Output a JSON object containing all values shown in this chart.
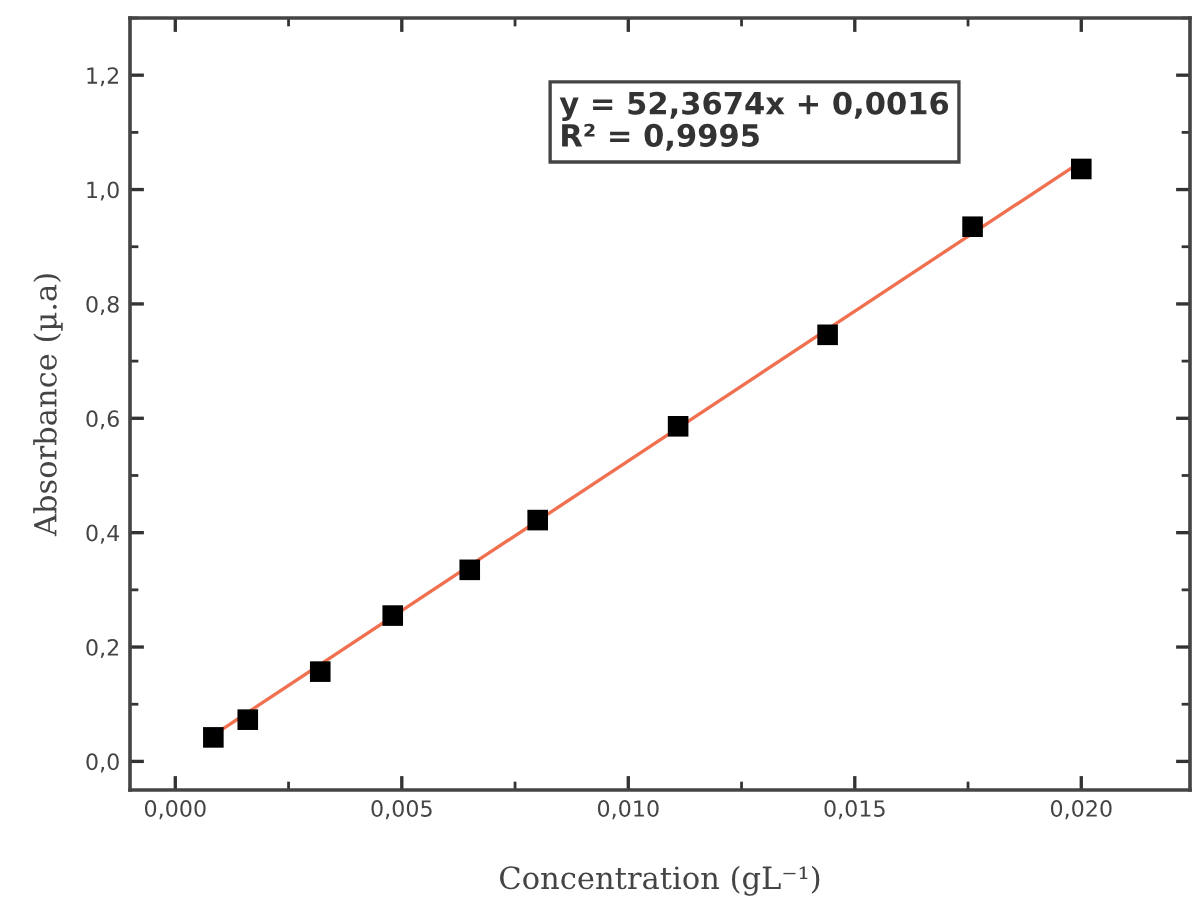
{
  "chart_data": {
    "type": "scatter",
    "xlabel": "Concentration (gL⁻¹)",
    "ylabel": "Absorbance (µ.a)",
    "x": [
      0.00084,
      0.0016,
      0.0032,
      0.0048,
      0.0065,
      0.008,
      0.0111,
      0.0144,
      0.0176,
      0.02
    ],
    "series": [
      {
        "color": "#000000",
        "marker": "square",
        "values": [
          0.042,
          0.073,
          0.157,
          0.255,
          0.335,
          0.422,
          0.586,
          0.746,
          0.935,
          1.036
        ]
      },
      {
        "type": "line",
        "color": "#f07050",
        "x": [
          0.00084,
          0.02
        ],
        "values": [
          0.046,
          1.049
        ]
      }
    ],
    "xlim": [
      -0.001,
      0.0224
    ],
    "ylim": [
      -0.05,
      1.3
    ],
    "xticks": [
      {
        "value": 0,
        "label": "0,000"
      },
      {
        "value": 0.005,
        "label": "0,005"
      },
      {
        "value": 0.01,
        "label": "0,010"
      },
      {
        "value": 0.015,
        "label": "0,015"
      },
      {
        "value": 0.02,
        "label": "0,020"
      }
    ],
    "yticks": [
      {
        "value": 0,
        "label": "0,0"
      },
      {
        "value": 0.2,
        "label": "0,2"
      },
      {
        "value": 0.4,
        "label": "0,4"
      },
      {
        "value": 0.6,
        "label": "0,6"
      },
      {
        "value": 0.8,
        "label": "0,8"
      },
      {
        "value": 1.0,
        "label": "1,0"
      },
      {
        "value": 1.2,
        "label": "1,2"
      }
    ],
    "annotations": [
      "y = 52,3674x + 0,0016",
      "R² = 0,9995"
    ],
    "grid": false,
    "legend": false
  }
}
